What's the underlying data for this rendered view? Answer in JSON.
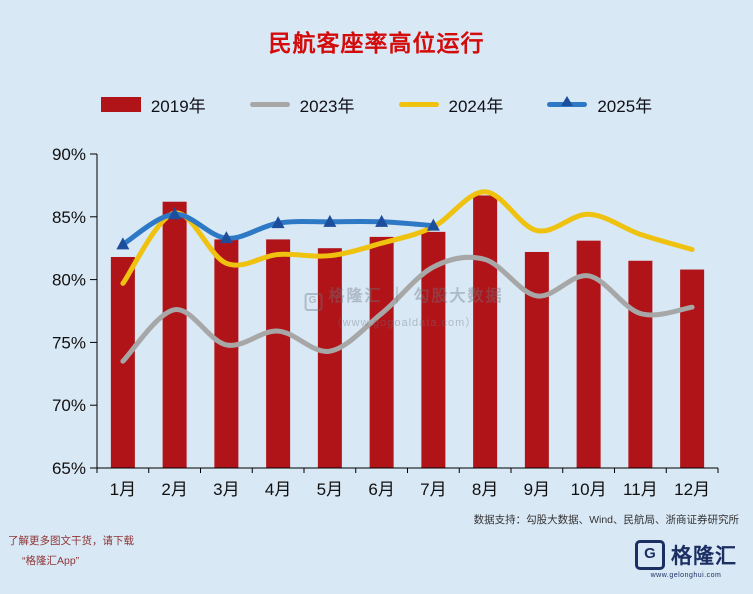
{
  "title": "民航客座率高位运行",
  "chart_data": {
    "type": "bar+line",
    "title": "民航客座率高位运行",
    "categories": [
      "1月",
      "2月",
      "3月",
      "4月",
      "5月",
      "6月",
      "7月",
      "8月",
      "9月",
      "10月",
      "11月",
      "12月"
    ],
    "series": [
      {
        "name": "2019年",
        "type": "bar",
        "color": "#b01318",
        "values": [
          81.8,
          86.2,
          83.2,
          83.2,
          82.5,
          83.4,
          83.8,
          86.7,
          82.2,
          83.1,
          81.5,
          80.8
        ]
      },
      {
        "name": "2023年",
        "type": "line",
        "color": "#a7a7a7",
        "values": [
          73.5,
          77.6,
          74.8,
          75.9,
          74.3,
          77.3,
          81.0,
          81.6,
          78.7,
          80.3,
          77.3,
          77.8
        ]
      },
      {
        "name": "2024年",
        "type": "line",
        "color": "#eec20e",
        "values": [
          79.7,
          85.3,
          81.3,
          82.0,
          81.9,
          82.9,
          84.2,
          87.0,
          83.9,
          85.2,
          83.6,
          82.4
        ]
      },
      {
        "name": "2025年",
        "type": "line",
        "color": "#2e79c5",
        "marker": "triangle",
        "marker_color": "#1d4e9b",
        "values": [
          82.8,
          85.2,
          83.3,
          84.5,
          84.6,
          84.6,
          84.3,
          null,
          null,
          null,
          null,
          null
        ]
      }
    ],
    "ylim": [
      65,
      90
    ],
    "yticks": [
      "65%",
      "70%",
      "75%",
      "80%",
      "85%",
      "90%"
    ],
    "grid": false,
    "legend_position": "top"
  },
  "watermark": {
    "logo_glyph": "G",
    "line1": "格隆汇 ｜ 勾股大数据",
    "line2": "（www.gogoaldata.com）"
  },
  "footer": {
    "source": "数据支持：勾股大数据、Wind、民航局、浙商证券研究所",
    "promo_line1": "了解更多图文干货，请下载",
    "promo_line2": "“格隆汇App”",
    "logo_glyph": "G",
    "logo_text": "格隆汇",
    "logo_url": "www.gelonghui.com"
  }
}
